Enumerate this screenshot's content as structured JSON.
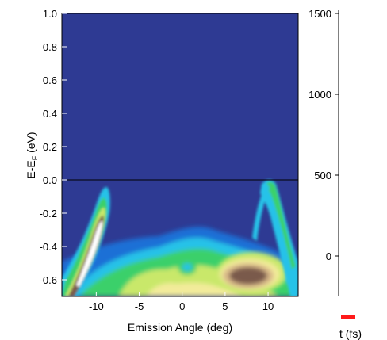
{
  "chart_data": {
    "type": "heatmap",
    "title": "",
    "xlabel": "Emission Angle (deg)",
    "ylabel": "E-E",
    "ylabel_subscript": "F",
    "ylabel_unit": " (eV)",
    "right_axis_label": "t (fs)",
    "xlim": [
      -14,
      13.5
    ],
    "ylim": [
      -0.7,
      1.0
    ],
    "right_ylim": [
      -250,
      1500
    ],
    "x_ticks": [
      -10,
      -5,
      0,
      5,
      10
    ],
    "y_ticks": [
      1.0,
      0.8,
      0.6,
      0.4,
      0.2,
      0.0,
      -0.2,
      -0.4,
      -0.6
    ],
    "y_tick_labels": [
      "1.0",
      "0.8",
      "0.6",
      "0.4",
      "0.2",
      "0.0",
      "-0.2",
      "-0.4",
      "-0.6"
    ],
    "right_ticks": [
      1500,
      1000,
      500,
      0
    ],
    "fermi_level_line": 0.0,
    "time_marker_fs": -260,
    "time_marker_color": "#ff1a1a",
    "colormap": [
      "#2e3a93",
      "#1f6fd6",
      "#28c2e8",
      "#3ad06a",
      "#c9e86a",
      "#f2eb9a",
      "#d8b888",
      "#7a5a4c",
      "#ffffff"
    ],
    "features": [
      {
        "name": "left-arc",
        "type": "band",
        "points": [
          [
            -13.5,
            -0.66
          ],
          [
            -12,
            -0.5
          ],
          [
            -10.5,
            -0.3
          ],
          [
            -9.6,
            -0.19
          ],
          [
            -9.2,
            -0.2
          ],
          [
            -9.5,
            -0.36
          ],
          [
            -11,
            -0.55
          ],
          [
            -12.5,
            -0.68
          ]
        ],
        "intensity": 1.0
      },
      {
        "name": "central-dome",
        "type": "region",
        "x": [
          -9,
          9
        ],
        "y": [
          -0.7,
          -0.3
        ],
        "intensity": 0.55
      },
      {
        "name": "right-hot-spot",
        "type": "region",
        "center": [
          6.5,
          -0.55
        ],
        "radius_x": 3.0,
        "radius_y": 0.08,
        "intensity": 0.9
      },
      {
        "name": "right-branch",
        "type": "band",
        "points": [
          [
            8.7,
            0.0
          ],
          [
            9.7,
            -0.1
          ],
          [
            11.5,
            -0.45
          ],
          [
            13.0,
            -0.7
          ]
        ],
        "intensity": 0.6
      }
    ]
  }
}
